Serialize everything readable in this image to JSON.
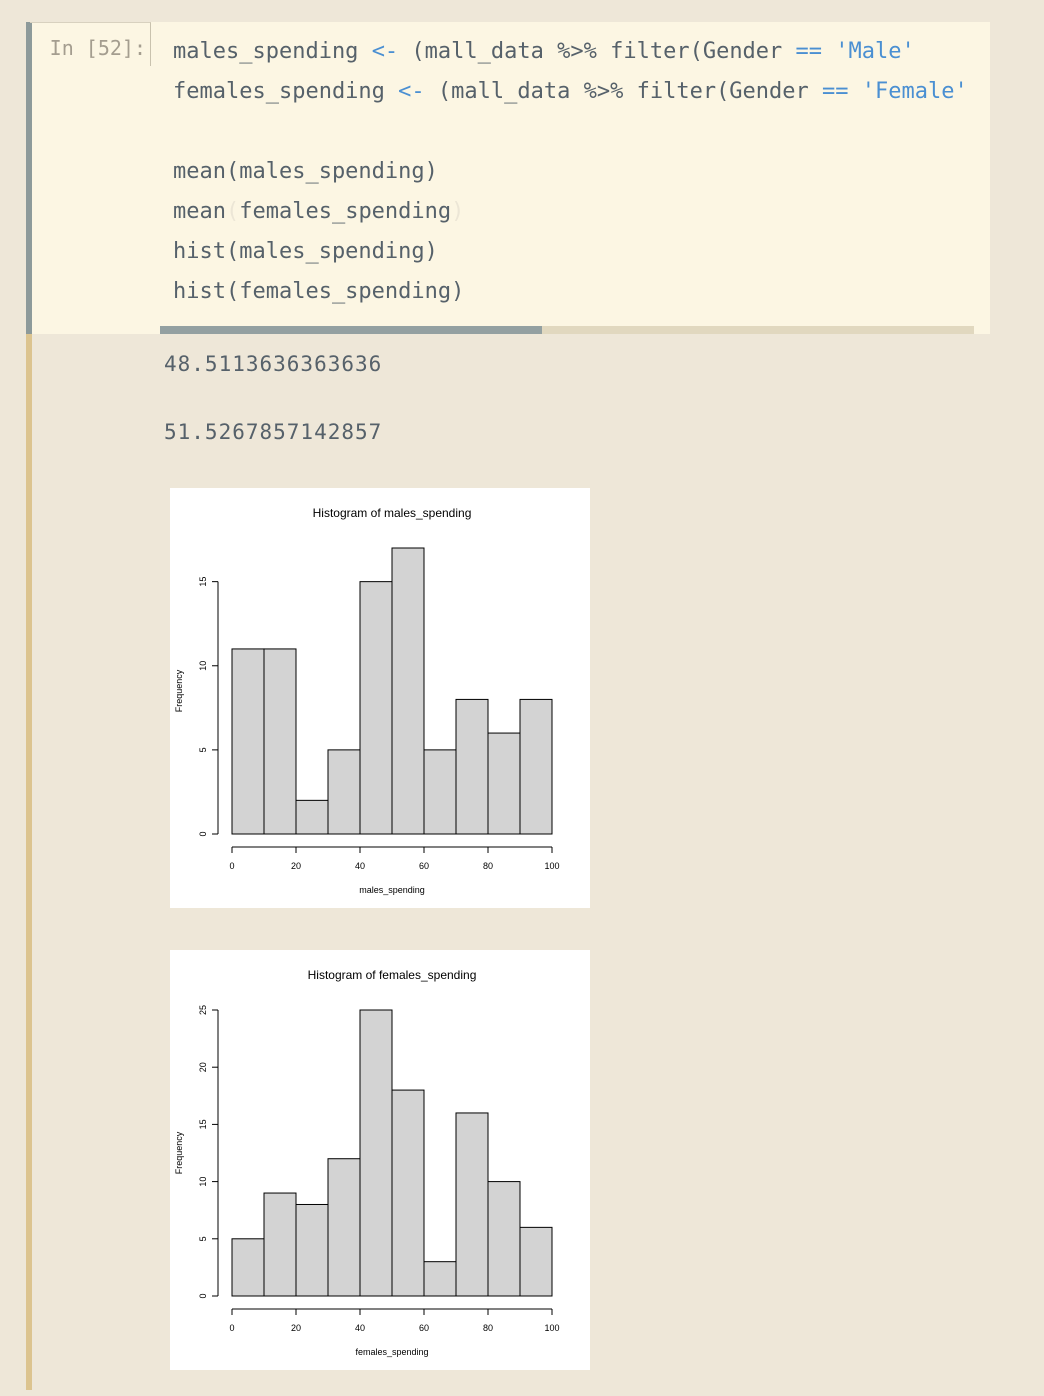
{
  "cell": {
    "prompt": "In [52]:",
    "code_lines": [
      [
        {
          "t": "males_spending "
        },
        {
          "t": "<-",
          "c": "kw"
        },
        {
          "t": " (mall_data %>% filter(Gender "
        },
        {
          "t": "==",
          "c": "kw"
        },
        {
          "t": " "
        },
        {
          "t": "'Male'",
          "c": "str"
        }
      ],
      [
        {
          "t": "females_spending "
        },
        {
          "t": "<-",
          "c": "kw"
        },
        {
          "t": " (mall_data %>% filter(Gender "
        },
        {
          "t": "==",
          "c": "kw"
        },
        {
          "t": " "
        },
        {
          "t": "'Female'",
          "c": "str"
        }
      ],
      [
        {
          "t": ""
        }
      ],
      [
        {
          "t": "mean(males_spending)"
        }
      ],
      [
        {
          "t": "mean"
        },
        {
          "t": "(",
          "c": "dim"
        },
        {
          "t": "females_spending"
        },
        {
          "t": ")",
          "c": "dim"
        }
      ],
      [
        {
          "t": "hist(males_spending)"
        }
      ],
      [
        {
          "t": "hist(females_spending)"
        }
      ]
    ]
  },
  "outputs": {
    "mean_males": "48.5113636363636",
    "mean_females": "51.5267857142857"
  },
  "chart_data": [
    {
      "type": "bar",
      "title": "Histogram of males_spending",
      "xlabel": "males_spending",
      "ylabel": "Frequency",
      "bin_edges": [
        0,
        10,
        20,
        30,
        40,
        50,
        60,
        70,
        80,
        90,
        100
      ],
      "values": [
        11,
        11,
        2,
        5,
        15,
        17,
        5,
        8,
        6,
        8
      ],
      "xlim": [
        0,
        100
      ],
      "ylim": [
        0,
        17
      ],
      "xticks": [
        0,
        20,
        40,
        60,
        80,
        100
      ],
      "yticks": [
        0,
        5,
        10,
        15
      ],
      "bar_color": "#d3d3d3"
    },
    {
      "type": "bar",
      "title": "Histogram of females_spending",
      "xlabel": "females_spending",
      "ylabel": "Frequency",
      "bin_edges": [
        0,
        10,
        20,
        30,
        40,
        50,
        60,
        70,
        80,
        90,
        100
      ],
      "values": [
        5,
        9,
        8,
        12,
        25,
        18,
        3,
        16,
        10,
        6
      ],
      "xlim": [
        0,
        100
      ],
      "ylim": [
        0,
        25
      ],
      "xticks": [
        0,
        20,
        40,
        60,
        80,
        100
      ],
      "yticks": [
        0,
        5,
        10,
        15,
        20,
        25
      ],
      "bar_color": "#d3d3d3"
    }
  ]
}
